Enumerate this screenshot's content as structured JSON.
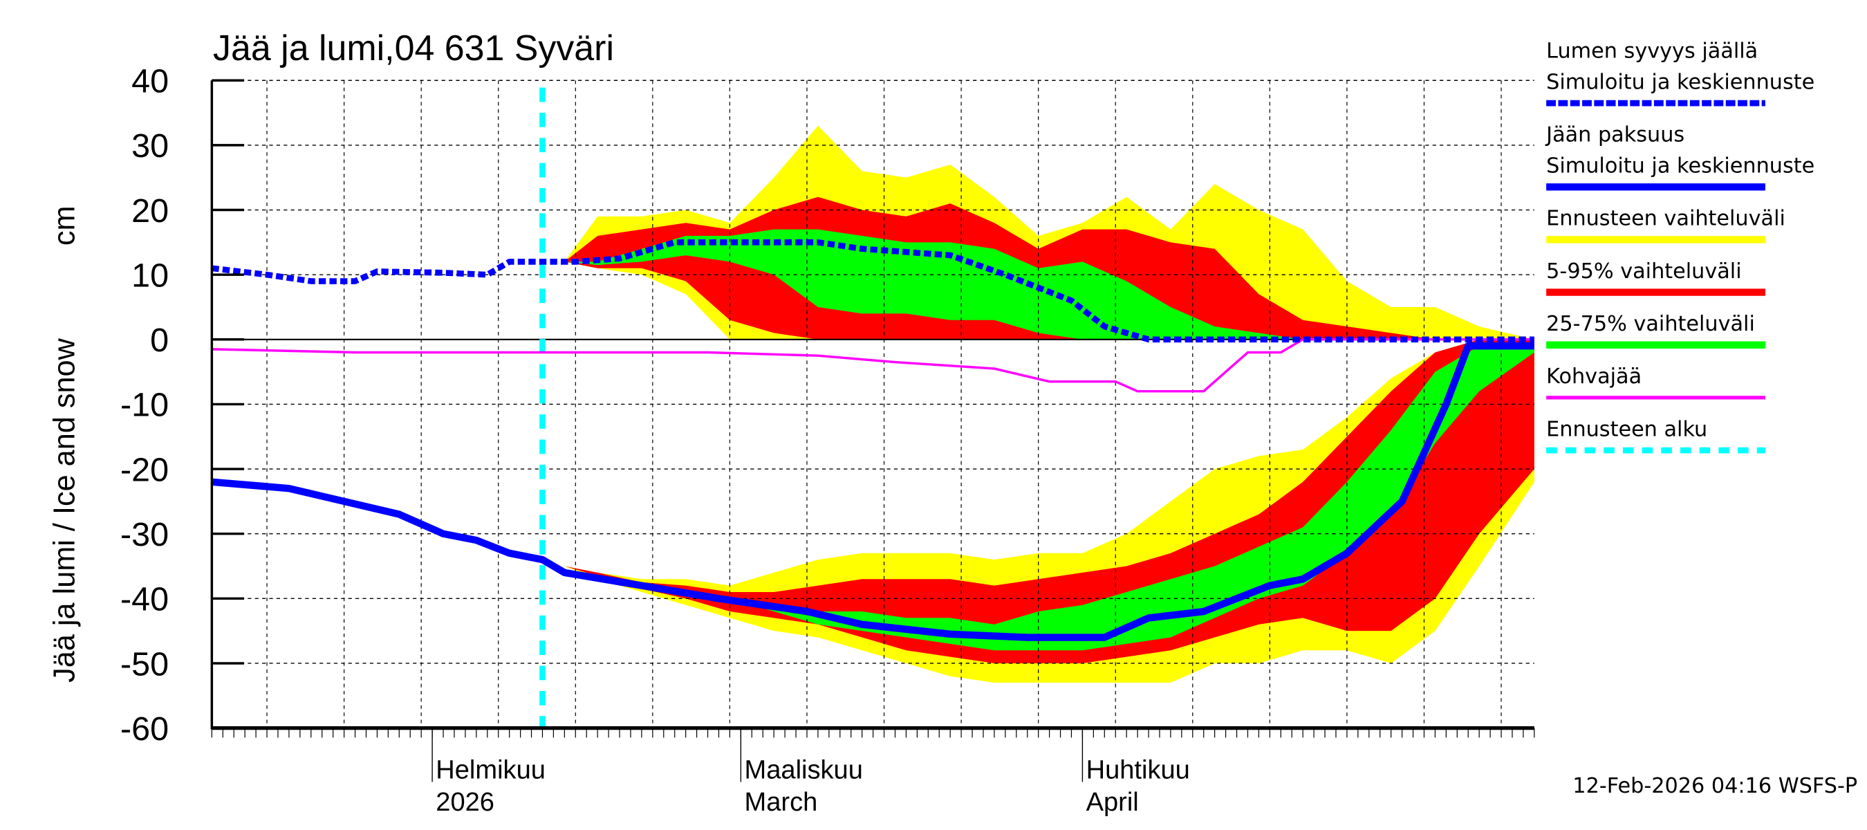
{
  "chart_data": {
    "type": "area",
    "title": "Jää ja lumi,04 631 Syväri",
    "ylabel": "Jää ja lumi / Ice and snow",
    "yunit": "cm",
    "ylim": [
      -60,
      40
    ],
    "yticks": [
      40,
      30,
      20,
      10,
      0,
      -10,
      -20,
      -30,
      -40,
      -50,
      -60
    ],
    "xlim": [
      "2026-01-12",
      "2026-05-12"
    ],
    "grid": true,
    "legend_position": "right",
    "month_labels": [
      {
        "date": "2026-02-01",
        "line1": "Helmikuu",
        "line2": "2026"
      },
      {
        "date": "2026-03-01",
        "line1": "Maaliskuu",
        "line2": "March"
      },
      {
        "date": "2026-04-01",
        "line1": "Huhtikuu",
        "line2": "April"
      }
    ],
    "forecast_start": "2026-02-11",
    "timestamp": "12-Feb-2026 04:16 WSFS-P",
    "colors": {
      "snow": "#0000ff",
      "ice": "#0000ff",
      "full_range": "#ffff00",
      "p5_95": "#ff0000",
      "p25_75": "#00ff00",
      "slush": "#ff00ff",
      "forecast_start": "#00ffff"
    },
    "legend": [
      {
        "label1": "Lumen syvyys jäällä",
        "label2": "Simuloitu ja keskiennuste",
        "color": "#0000ff",
        "style": "dashed-thick"
      },
      {
        "label1": "Jään paksuus",
        "label2": "Simuloitu ja keskiennuste",
        "color": "#0000ff",
        "style": "solid-thick"
      },
      {
        "label1": "Ennusteen vaihteluväli",
        "color": "#ffff00",
        "style": "band"
      },
      {
        "label1": "5-95% vaihteluväli",
        "color": "#ff0000",
        "style": "band"
      },
      {
        "label1": "25-75% vaihteluväli",
        "color": "#00ff00",
        "style": "band"
      },
      {
        "label1": "Kohvajää",
        "color": "#ff00ff",
        "style": "thin"
      },
      {
        "label1": "Ennusteen alku",
        "color": "#00ffff",
        "style": "dashed-sparse"
      }
    ],
    "snow_depth": {
      "dates": [
        "2026-01-12",
        "2026-01-17",
        "2026-01-21",
        "2026-01-25",
        "2026-01-27",
        "2026-02-02",
        "2026-02-06",
        "2026-02-08",
        "2026-02-14",
        "2026-02-18",
        "2026-02-23",
        "2026-03-03",
        "2026-03-08",
        "2026-03-12",
        "2026-03-20",
        "2026-03-25",
        "2026-03-31",
        "2026-04-03",
        "2026-04-07",
        "2026-05-12"
      ],
      "values": [
        11,
        10,
        9,
        9,
        10.5,
        10.3,
        10,
        12,
        12,
        12.5,
        15,
        15,
        15,
        14,
        13,
        10,
        6,
        2,
        0,
        0
      ]
    },
    "ice_thickness": {
      "dates": [
        "2026-01-12",
        "2026-01-19",
        "2026-01-24",
        "2026-01-29",
        "2026-02-02",
        "2026-02-05",
        "2026-02-08",
        "2026-02-11",
        "2026-02-13",
        "2026-02-20",
        "2026-02-27",
        "2026-03-07",
        "2026-03-12",
        "2026-03-20",
        "2026-03-27",
        "2026-04-03",
        "2026-04-07",
        "2026-04-12",
        "2026-04-18",
        "2026-04-21",
        "2026-04-25",
        "2026-04-30",
        "2026-05-04",
        "2026-05-06",
        "2026-05-12"
      ],
      "values": [
        -22,
        -23,
        -25,
        -27,
        -30,
        -31,
        -33,
        -34,
        -36,
        -38,
        -40,
        -42,
        -44,
        -45.5,
        -46,
        -46,
        -43,
        -42,
        -38,
        -37,
        -33,
        -25,
        -10,
        -1,
        -1
      ]
    },
    "slush_ice": {
      "dates": [
        "2026-01-12",
        "2026-01-25",
        "2026-02-26",
        "2026-03-08",
        "2026-03-15",
        "2026-03-24",
        "2026-03-29",
        "2026-04-04",
        "2026-04-06",
        "2026-04-12",
        "2026-04-14",
        "2026-04-16",
        "2026-04-19",
        "2026-04-21",
        "2026-05-12"
      ],
      "values": [
        -1.5,
        -2,
        -2,
        -2.5,
        -3.5,
        -4.5,
        -6.5,
        -6.5,
        -8,
        -8,
        -5,
        -2,
        -2,
        0,
        0
      ]
    },
    "band_dates": [
      "2026-02-13",
      "2026-02-16",
      "2026-02-20",
      "2026-02-24",
      "2026-02-28",
      "2026-03-04",
      "2026-03-08",
      "2026-03-12",
      "2026-03-16",
      "2026-03-20",
      "2026-03-24",
      "2026-03-28",
      "2026-04-01",
      "2026-04-05",
      "2026-04-09",
      "2026-04-13",
      "2026-04-17",
      "2026-04-21",
      "2026-04-25",
      "2026-04-29",
      "2026-05-03",
      "2026-05-07",
      "2026-05-12"
    ],
    "snow_bands": {
      "full_range": {
        "high": [
          12,
          19,
          19,
          20,
          18,
          25,
          33,
          26,
          25,
          27,
          22,
          16,
          18,
          22,
          17,
          24,
          20,
          17,
          9,
          5,
          5,
          2,
          0
        ],
        "low": [
          12,
          11,
          10,
          7,
          0,
          0,
          0,
          0,
          0,
          0,
          0,
          0,
          0,
          0,
          0,
          0,
          0,
          0,
          0,
          0,
          0,
          0,
          0
        ]
      },
      "p5_95": {
        "high": [
          12,
          16,
          17,
          18,
          17,
          20,
          22,
          20,
          19,
          21,
          18,
          14,
          17,
          17,
          15,
          14,
          7,
          3,
          2,
          1,
          0,
          0,
          0
        ],
        "low": [
          12,
          11,
          11,
          9,
          3,
          1,
          0,
          0,
          0,
          0,
          0,
          0,
          0,
          0,
          0,
          0,
          0,
          0,
          0,
          0,
          0,
          0,
          0
        ]
      },
      "p25_75": {
        "high": [
          12,
          12,
          14,
          16,
          16,
          17,
          17,
          16,
          15,
          15,
          14,
          11,
          12,
          9,
          5,
          2,
          1,
          0,
          0,
          0,
          0,
          0,
          0
        ],
        "low": [
          12,
          11.5,
          12,
          13,
          12,
          10,
          5,
          4,
          4,
          3,
          3,
          1,
          0,
          0,
          0,
          0,
          0,
          0,
          0,
          0,
          0,
          0,
          0
        ]
      }
    },
    "ice_bands": {
      "full_range": {
        "high": [
          -35,
          -36,
          -37,
          -37,
          -38,
          -36,
          -34,
          -33,
          -33,
          -33,
          -34,
          -33,
          -33,
          -30,
          -25,
          -20,
          -18,
          -17,
          -12,
          -6,
          -2,
          0,
          0
        ],
        "low": [
          -35,
          -37,
          -39,
          -41,
          -43,
          -45,
          -46,
          -48,
          -50,
          -52,
          -53,
          -53,
          -53,
          -53,
          -53,
          -50,
          -50,
          -48,
          -48,
          -50,
          -45,
          -35,
          -22
        ]
      },
      "p5_95": {
        "high": [
          -35,
          -36,
          -37.5,
          -38,
          -39,
          -39,
          -38,
          -37,
          -37,
          -37,
          -38,
          -37,
          -36,
          -35,
          -33,
          -30,
          -27,
          -22,
          -15,
          -8,
          -2,
          0,
          0
        ],
        "low": [
          -35,
          -36.5,
          -38.5,
          -40,
          -42,
          -43,
          -44,
          -46,
          -48,
          -49,
          -50,
          -50,
          -50,
          -49,
          -48,
          -46,
          -44,
          -43,
          -45,
          -45,
          -40,
          -30,
          -20
        ]
      },
      "p25_75": {
        "high": [
          -35,
          -36,
          -38,
          -39,
          -40,
          -41,
          -42,
          -42,
          -43,
          -43,
          -44,
          -42,
          -41,
          -39,
          -37,
          -35,
          -32,
          -29,
          -22,
          -14,
          -5,
          -1,
          -1
        ],
        "low": [
          -35,
          -36,
          -38,
          -39,
          -40,
          -42,
          -44,
          -45,
          -46,
          -47,
          -48,
          -48,
          -48,
          -47,
          -46,
          -43,
          -40,
          -38,
          -33,
          -27,
          -16,
          -8,
          -2
        ]
      }
    }
  }
}
